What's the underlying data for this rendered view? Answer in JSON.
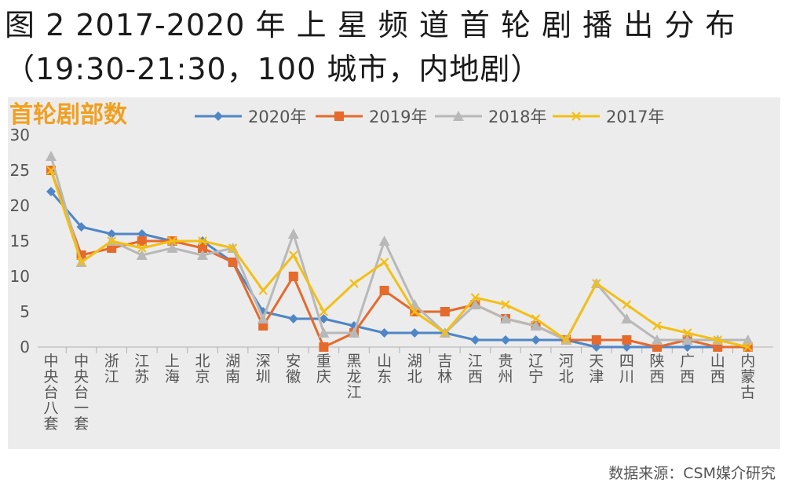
{
  "title_line1": "图 2 2017-2020 年 上 星 频 道 首 轮 剧 播 出 分 布",
  "title_line2": "（19:30-21:30，100 城市，内地剧）",
  "source": "数据来源：CSM媒介研究",
  "colors": {
    "s2020": "#4f86c6",
    "s2019": "#e56a2b",
    "s2018": "#b8b8b8",
    "s2017": "#f2bf16",
    "panel_bg": "#ececec",
    "ylabel": "#f0a020"
  },
  "chart_data": {
    "type": "line",
    "ylabel": "首轮剧部数",
    "ylim": [
      0,
      30
    ],
    "yticks": [
      0,
      5,
      10,
      15,
      20,
      25,
      30
    ],
    "grid": false,
    "legend_position": "top",
    "categories": [
      "中央台八套",
      "中央台一套",
      "浙江",
      "江苏",
      "上海",
      "北京",
      "湖南",
      "深圳",
      "安徽",
      "重庆",
      "黑龙江",
      "山东",
      "湖北",
      "吉林",
      "江西",
      "贵州",
      "辽宁",
      "河北",
      "天津",
      "四川",
      "陕西",
      "广西",
      "山西",
      "内蒙古"
    ],
    "series": [
      {
        "name": "2020年",
        "marker": "diamond",
        "values": [
          22,
          17,
          16,
          16,
          15,
          15,
          12,
          5,
          4,
          4,
          3,
          2,
          2,
          2,
          1,
          1,
          1,
          1,
          0,
          0,
          0,
          0,
          0,
          0
        ]
      },
      {
        "name": "2019年",
        "marker": "square",
        "values": [
          25,
          13,
          14,
          15,
          15,
          14,
          12,
          3,
          10,
          0,
          2,
          8,
          5,
          5,
          6,
          4,
          3,
          1,
          1,
          1,
          0,
          1,
          0,
          0
        ]
      },
      {
        "name": "2018年",
        "marker": "triangle",
        "values": [
          27,
          12,
          15,
          13,
          14,
          13,
          14,
          4,
          16,
          2,
          2,
          15,
          6,
          2,
          6,
          4,
          3,
          1,
          9,
          4,
          1,
          1,
          1,
          1
        ]
      },
      {
        "name": "2017年",
        "marker": "x",
        "values": [
          25,
          12,
          15,
          14,
          15,
          15,
          14,
          8,
          13,
          5,
          9,
          12,
          5,
          2,
          7,
          6,
          4,
          1,
          9,
          6,
          3,
          2,
          1,
          0
        ]
      }
    ]
  }
}
